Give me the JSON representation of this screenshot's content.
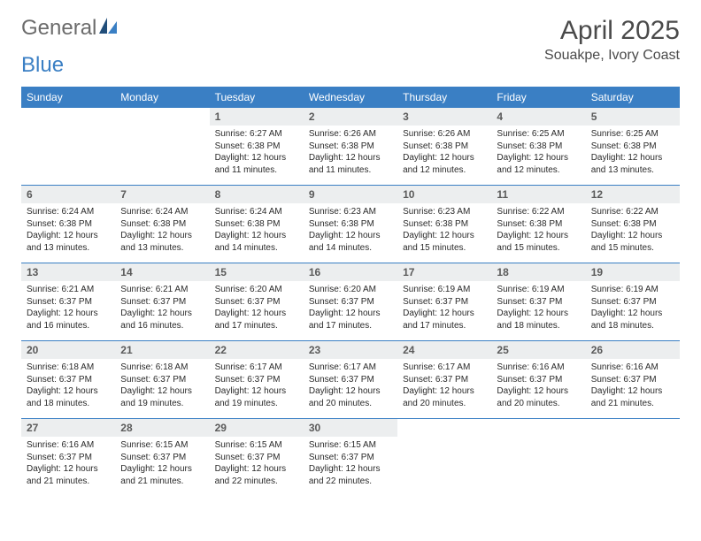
{
  "logo": {
    "part1": "General",
    "part2": "Blue"
  },
  "title": "April 2025",
  "location": "Souakpe, Ivory Coast",
  "colors": {
    "header_bg": "#3a7fc4",
    "header_fg": "#ffffff",
    "daynum_bg": "#eceeef",
    "daynum_fg": "#5a5a5a",
    "body_fg": "#2a2a2a",
    "rule": "#3a7fc4",
    "title_fg": "#4a4a4a",
    "logo_gray": "#6b6b6b",
    "logo_blue": "#3a7fc4",
    "page_bg": "#ffffff"
  },
  "typography": {
    "title_fontsize": 30,
    "location_fontsize": 16,
    "logo_fontsize": 24,
    "dayhead_fontsize": 12,
    "daynum_fontsize": 12,
    "body_fontsize": 10
  },
  "weekdays": [
    "Sunday",
    "Monday",
    "Tuesday",
    "Wednesday",
    "Thursday",
    "Friday",
    "Saturday"
  ],
  "weeks": [
    [
      null,
      null,
      {
        "n": "1",
        "sr": "Sunrise: 6:27 AM",
        "ss": "Sunset: 6:38 PM",
        "dl": "Daylight: 12 hours and 11 minutes."
      },
      {
        "n": "2",
        "sr": "Sunrise: 6:26 AM",
        "ss": "Sunset: 6:38 PM",
        "dl": "Daylight: 12 hours and 11 minutes."
      },
      {
        "n": "3",
        "sr": "Sunrise: 6:26 AM",
        "ss": "Sunset: 6:38 PM",
        "dl": "Daylight: 12 hours and 12 minutes."
      },
      {
        "n": "4",
        "sr": "Sunrise: 6:25 AM",
        "ss": "Sunset: 6:38 PM",
        "dl": "Daylight: 12 hours and 12 minutes."
      },
      {
        "n": "5",
        "sr": "Sunrise: 6:25 AM",
        "ss": "Sunset: 6:38 PM",
        "dl": "Daylight: 12 hours and 13 minutes."
      }
    ],
    [
      {
        "n": "6",
        "sr": "Sunrise: 6:24 AM",
        "ss": "Sunset: 6:38 PM",
        "dl": "Daylight: 12 hours and 13 minutes."
      },
      {
        "n": "7",
        "sr": "Sunrise: 6:24 AM",
        "ss": "Sunset: 6:38 PM",
        "dl": "Daylight: 12 hours and 13 minutes."
      },
      {
        "n": "8",
        "sr": "Sunrise: 6:24 AM",
        "ss": "Sunset: 6:38 PM",
        "dl": "Daylight: 12 hours and 14 minutes."
      },
      {
        "n": "9",
        "sr": "Sunrise: 6:23 AM",
        "ss": "Sunset: 6:38 PM",
        "dl": "Daylight: 12 hours and 14 minutes."
      },
      {
        "n": "10",
        "sr": "Sunrise: 6:23 AM",
        "ss": "Sunset: 6:38 PM",
        "dl": "Daylight: 12 hours and 15 minutes."
      },
      {
        "n": "11",
        "sr": "Sunrise: 6:22 AM",
        "ss": "Sunset: 6:38 PM",
        "dl": "Daylight: 12 hours and 15 minutes."
      },
      {
        "n": "12",
        "sr": "Sunrise: 6:22 AM",
        "ss": "Sunset: 6:38 PM",
        "dl": "Daylight: 12 hours and 15 minutes."
      }
    ],
    [
      {
        "n": "13",
        "sr": "Sunrise: 6:21 AM",
        "ss": "Sunset: 6:37 PM",
        "dl": "Daylight: 12 hours and 16 minutes."
      },
      {
        "n": "14",
        "sr": "Sunrise: 6:21 AM",
        "ss": "Sunset: 6:37 PM",
        "dl": "Daylight: 12 hours and 16 minutes."
      },
      {
        "n": "15",
        "sr": "Sunrise: 6:20 AM",
        "ss": "Sunset: 6:37 PM",
        "dl": "Daylight: 12 hours and 17 minutes."
      },
      {
        "n": "16",
        "sr": "Sunrise: 6:20 AM",
        "ss": "Sunset: 6:37 PM",
        "dl": "Daylight: 12 hours and 17 minutes."
      },
      {
        "n": "17",
        "sr": "Sunrise: 6:19 AM",
        "ss": "Sunset: 6:37 PM",
        "dl": "Daylight: 12 hours and 17 minutes."
      },
      {
        "n": "18",
        "sr": "Sunrise: 6:19 AM",
        "ss": "Sunset: 6:37 PM",
        "dl": "Daylight: 12 hours and 18 minutes."
      },
      {
        "n": "19",
        "sr": "Sunrise: 6:19 AM",
        "ss": "Sunset: 6:37 PM",
        "dl": "Daylight: 12 hours and 18 minutes."
      }
    ],
    [
      {
        "n": "20",
        "sr": "Sunrise: 6:18 AM",
        "ss": "Sunset: 6:37 PM",
        "dl": "Daylight: 12 hours and 18 minutes."
      },
      {
        "n": "21",
        "sr": "Sunrise: 6:18 AM",
        "ss": "Sunset: 6:37 PM",
        "dl": "Daylight: 12 hours and 19 minutes."
      },
      {
        "n": "22",
        "sr": "Sunrise: 6:17 AM",
        "ss": "Sunset: 6:37 PM",
        "dl": "Daylight: 12 hours and 19 minutes."
      },
      {
        "n": "23",
        "sr": "Sunrise: 6:17 AM",
        "ss": "Sunset: 6:37 PM",
        "dl": "Daylight: 12 hours and 20 minutes."
      },
      {
        "n": "24",
        "sr": "Sunrise: 6:17 AM",
        "ss": "Sunset: 6:37 PM",
        "dl": "Daylight: 12 hours and 20 minutes."
      },
      {
        "n": "25",
        "sr": "Sunrise: 6:16 AM",
        "ss": "Sunset: 6:37 PM",
        "dl": "Daylight: 12 hours and 20 minutes."
      },
      {
        "n": "26",
        "sr": "Sunrise: 6:16 AM",
        "ss": "Sunset: 6:37 PM",
        "dl": "Daylight: 12 hours and 21 minutes."
      }
    ],
    [
      {
        "n": "27",
        "sr": "Sunrise: 6:16 AM",
        "ss": "Sunset: 6:37 PM",
        "dl": "Daylight: 12 hours and 21 minutes."
      },
      {
        "n": "28",
        "sr": "Sunrise: 6:15 AM",
        "ss": "Sunset: 6:37 PM",
        "dl": "Daylight: 12 hours and 21 minutes."
      },
      {
        "n": "29",
        "sr": "Sunrise: 6:15 AM",
        "ss": "Sunset: 6:37 PM",
        "dl": "Daylight: 12 hours and 22 minutes."
      },
      {
        "n": "30",
        "sr": "Sunrise: 6:15 AM",
        "ss": "Sunset: 6:37 PM",
        "dl": "Daylight: 12 hours and 22 minutes."
      },
      null,
      null,
      null
    ]
  ]
}
